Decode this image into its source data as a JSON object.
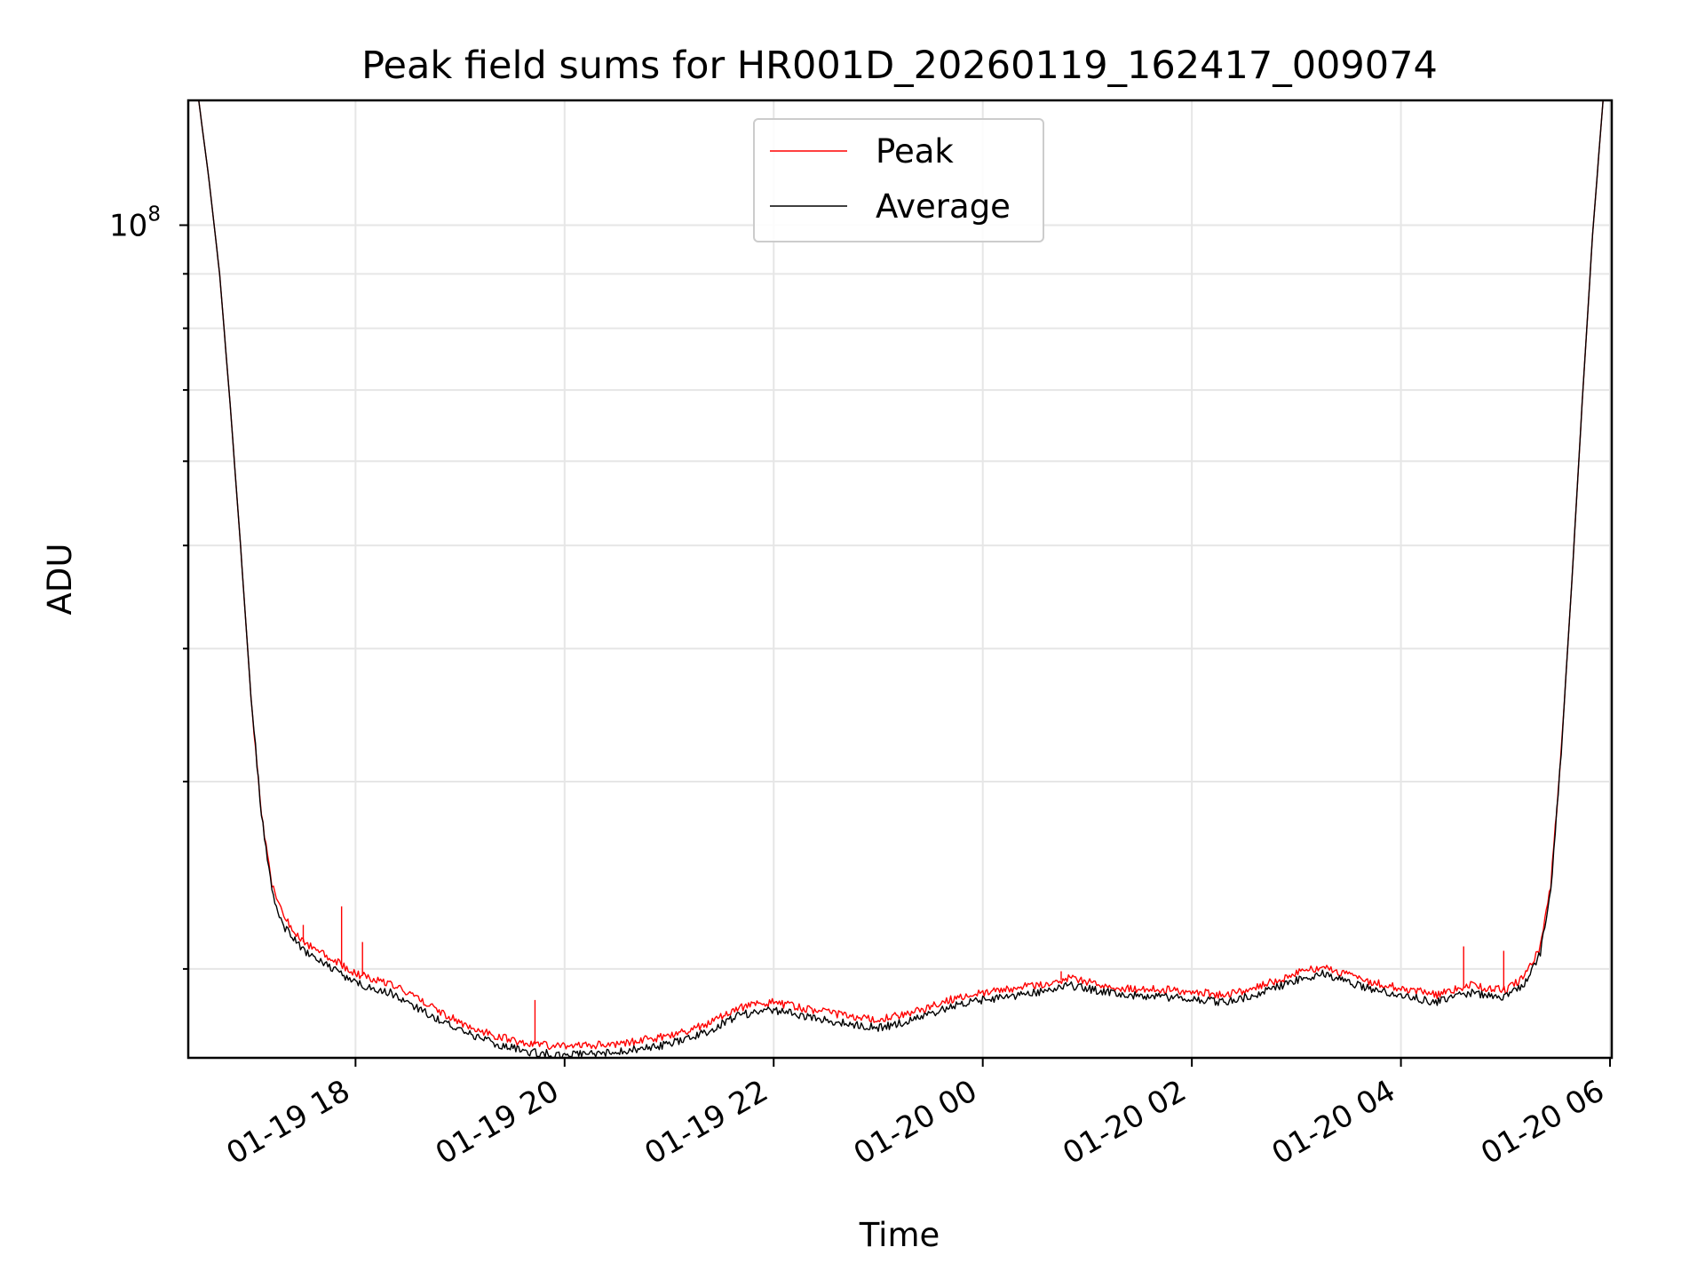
{
  "chart_data": {
    "type": "line",
    "title": "Peak field sums for HR001D_20260119_162417_009074",
    "xlabel": "Time",
    "ylabel": "ADU",
    "scale": {
      "x": "time",
      "y": "log"
    },
    "xlim": [
      "2026-01-19T16:24",
      "2026-01-20T06:01"
    ],
    "ylim": [
      16500000,
      131000000
    ],
    "grid": true,
    "legend": "upper center",
    "x_ticks": [
      {
        "value": "2026-01-19T18:00",
        "label": "01-19 18"
      },
      {
        "value": "2026-01-19T20:00",
        "label": "01-19 20"
      },
      {
        "value": "2026-01-19T22:00",
        "label": "01-19 22"
      },
      {
        "value": "2026-01-20T00:00",
        "label": "01-20 00"
      },
      {
        "value": "2026-01-20T02:00",
        "label": "01-20 02"
      },
      {
        "value": "2026-01-20T04:00",
        "label": "01-20 04"
      },
      {
        "value": "2026-01-20T06:00",
        "label": "01-20 06"
      }
    ],
    "y_major_ticks": [
      {
        "value": 100000000,
        "base": "10",
        "exp": "8"
      }
    ],
    "y_minor_ticks": [
      20000000,
      30000000,
      40000000,
      50000000,
      60000000,
      70000000,
      80000000,
      90000000,
      200000000
    ],
    "colors": {
      "peak": "#ff0000",
      "average": "#000000"
    },
    "series": [
      {
        "name": "Peak",
        "color": "#ff0000",
        "points": [
          [
            "2026-01-19T16:30",
            131000000
          ],
          [
            "2026-01-19T16:36",
            110000000
          ],
          [
            "2026-01-19T16:42",
            90000000
          ],
          [
            "2026-01-19T16:48",
            68000000
          ],
          [
            "2026-01-19T16:54",
            50000000
          ],
          [
            "2026-01-19T17:00",
            36000000
          ],
          [
            "2026-01-19T17:06",
            28000000
          ],
          [
            "2026-01-19T17:12",
            24000000
          ],
          [
            "2026-01-19T17:18",
            22500000
          ],
          [
            "2026-01-19T17:30",
            21200000
          ],
          [
            "2026-01-19T17:45",
            20500000
          ],
          [
            "2026-01-19T18:00",
            19800000
          ],
          [
            "2026-01-19T18:20",
            19400000
          ],
          [
            "2026-01-19T18:40",
            18600000
          ],
          [
            "2026-01-19T19:00",
            17800000
          ],
          [
            "2026-01-19T19:20",
            17300000
          ],
          [
            "2026-01-19T19:40",
            17000000
          ],
          [
            "2026-01-19T20:00",
            16900000
          ],
          [
            "2026-01-19T20:30",
            17000000
          ],
          [
            "2026-01-19T21:00",
            17300000
          ],
          [
            "2026-01-19T21:20",
            17700000
          ],
          [
            "2026-01-19T21:40",
            18400000
          ],
          [
            "2026-01-19T22:00",
            18600000
          ],
          [
            "2026-01-19T22:30",
            18200000
          ],
          [
            "2026-01-19T23:00",
            17900000
          ],
          [
            "2026-01-19T23:20",
            18200000
          ],
          [
            "2026-01-19T23:40",
            18700000
          ],
          [
            "2026-01-20T00:00",
            19000000
          ],
          [
            "2026-01-20T00:30",
            19300000
          ],
          [
            "2026-01-20T00:50",
            19600000
          ],
          [
            "2026-01-20T01:20",
            19200000
          ],
          [
            "2026-01-20T01:50",
            19100000
          ],
          [
            "2026-01-20T02:20",
            18900000
          ],
          [
            "2026-01-20T02:40",
            19300000
          ],
          [
            "2026-01-20T03:00",
            19800000
          ],
          [
            "2026-01-20T03:15",
            20100000
          ],
          [
            "2026-01-20T03:40",
            19500000
          ],
          [
            "2026-01-20T04:00",
            19200000
          ],
          [
            "2026-01-20T04:20",
            18900000
          ],
          [
            "2026-01-20T04:40",
            19300000
          ],
          [
            "2026-01-20T05:00",
            19100000
          ],
          [
            "2026-01-20T05:10",
            19600000
          ],
          [
            "2026-01-20T05:20",
            21000000
          ],
          [
            "2026-01-20T05:26",
            24000000
          ],
          [
            "2026-01-20T05:32",
            32000000
          ],
          [
            "2026-01-20T05:38",
            46000000
          ],
          [
            "2026-01-20T05:44",
            68000000
          ],
          [
            "2026-01-20T05:50",
            98000000
          ],
          [
            "2026-01-20T05:56",
            131000000
          ]
        ],
        "spikes": [
          [
            "2026-01-19T17:11",
            24500000
          ],
          [
            "2026-01-19T17:30",
            22000000
          ],
          [
            "2026-01-19T17:52",
            22900000
          ],
          [
            "2026-01-19T18:04",
            21200000
          ],
          [
            "2026-01-19T19:43",
            18700000
          ],
          [
            "2026-01-20T00:45",
            19900000
          ],
          [
            "2026-01-20T04:36",
            21000000
          ],
          [
            "2026-01-20T04:59",
            20800000
          ]
        ]
      },
      {
        "name": "Average",
        "color": "#000000",
        "points": [
          [
            "2026-01-19T16:30",
            131000000
          ],
          [
            "2026-01-19T16:36",
            110000000
          ],
          [
            "2026-01-19T16:42",
            90000000
          ],
          [
            "2026-01-19T16:48",
            68000000
          ],
          [
            "2026-01-19T16:54",
            50000000
          ],
          [
            "2026-01-19T17:00",
            36000000
          ],
          [
            "2026-01-19T17:06",
            28000000
          ],
          [
            "2026-01-19T17:12",
            23700000
          ],
          [
            "2026-01-19T17:18",
            22000000
          ],
          [
            "2026-01-19T17:30",
            20800000
          ],
          [
            "2026-01-19T17:45",
            20100000
          ],
          [
            "2026-01-19T18:00",
            19400000
          ],
          [
            "2026-01-19T18:20",
            19000000
          ],
          [
            "2026-01-19T18:40",
            18200000
          ],
          [
            "2026-01-19T19:00",
            17500000
          ],
          [
            "2026-01-19T19:20",
            17000000
          ],
          [
            "2026-01-19T19:40",
            16700000
          ],
          [
            "2026-01-19T20:00",
            16600000
          ],
          [
            "2026-01-19T20:30",
            16700000
          ],
          [
            "2026-01-19T21:00",
            17000000
          ],
          [
            "2026-01-19T21:20",
            17400000
          ],
          [
            "2026-01-19T21:40",
            18100000
          ],
          [
            "2026-01-19T22:00",
            18300000
          ],
          [
            "2026-01-19T22:30",
            17900000
          ],
          [
            "2026-01-19T23:00",
            17600000
          ],
          [
            "2026-01-19T23:20",
            17900000
          ],
          [
            "2026-01-19T23:40",
            18400000
          ],
          [
            "2026-01-20T00:00",
            18700000
          ],
          [
            "2026-01-20T00:30",
            19000000
          ],
          [
            "2026-01-20T00:50",
            19300000
          ],
          [
            "2026-01-20T01:20",
            18900000
          ],
          [
            "2026-01-20T01:50",
            18800000
          ],
          [
            "2026-01-20T02:20",
            18600000
          ],
          [
            "2026-01-20T02:40",
            19000000
          ],
          [
            "2026-01-20T03:00",
            19500000
          ],
          [
            "2026-01-20T03:15",
            19800000
          ],
          [
            "2026-01-20T03:40",
            19200000
          ],
          [
            "2026-01-20T04:00",
            18900000
          ],
          [
            "2026-01-20T04:20",
            18600000
          ],
          [
            "2026-01-20T04:40",
            19000000
          ],
          [
            "2026-01-20T05:00",
            18800000
          ],
          [
            "2026-01-20T05:10",
            19300000
          ],
          [
            "2026-01-20T05:20",
            20700000
          ],
          [
            "2026-01-20T05:26",
            23700000
          ],
          [
            "2026-01-20T05:32",
            32000000
          ],
          [
            "2026-01-20T05:38",
            46000000
          ],
          [
            "2026-01-20T05:44",
            68000000
          ],
          [
            "2026-01-20T05:50",
            98000000
          ],
          [
            "2026-01-20T05:56",
            131000000
          ]
        ]
      }
    ]
  }
}
